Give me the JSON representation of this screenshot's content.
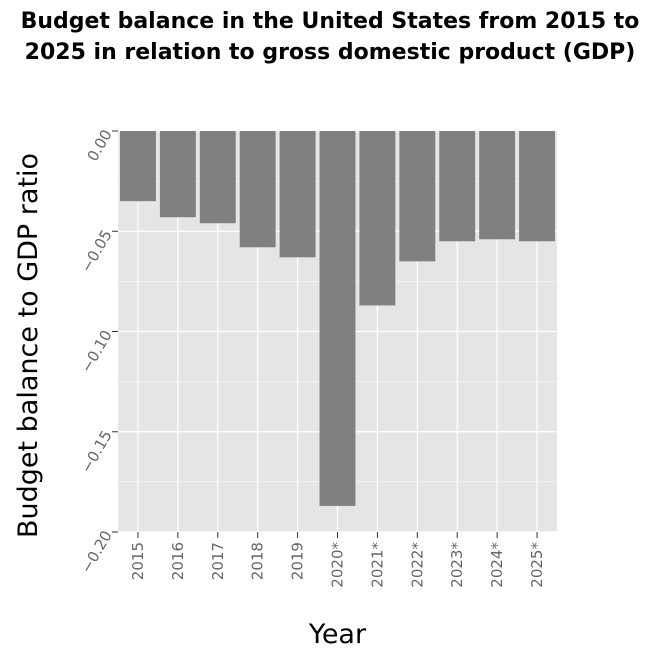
{
  "chart_data": {
    "type": "bar",
    "title": "Budget balance in the United States from 2015 to 2025 in relation to gross domestic product (GDP)",
    "xlabel": "Year",
    "ylabel": "Budget balance to GDP ratio",
    "categories": [
      "2015",
      "2016",
      "2017",
      "2018",
      "2019",
      "2020*",
      "2021*",
      "2022*",
      "2023*",
      "2024*",
      "2025*"
    ],
    "values": [
      -0.035,
      -0.043,
      -0.046,
      -0.058,
      -0.063,
      -0.187,
      -0.087,
      -0.065,
      -0.055,
      -0.054,
      -0.055
    ],
    "ylim": [
      -0.2,
      0.0
    ],
    "yticks": [
      "0.00",
      "−0.05",
      "−0.10",
      "−0.15",
      "−0.20"
    ],
    "ytick_values": [
      0,
      -0.05,
      -0.1,
      -0.15,
      -0.2
    ],
    "grid": true,
    "colors": {
      "bar": "#808080",
      "panel": "#e5e5e5",
      "grid": "#ffffff",
      "text": "#666666"
    }
  }
}
